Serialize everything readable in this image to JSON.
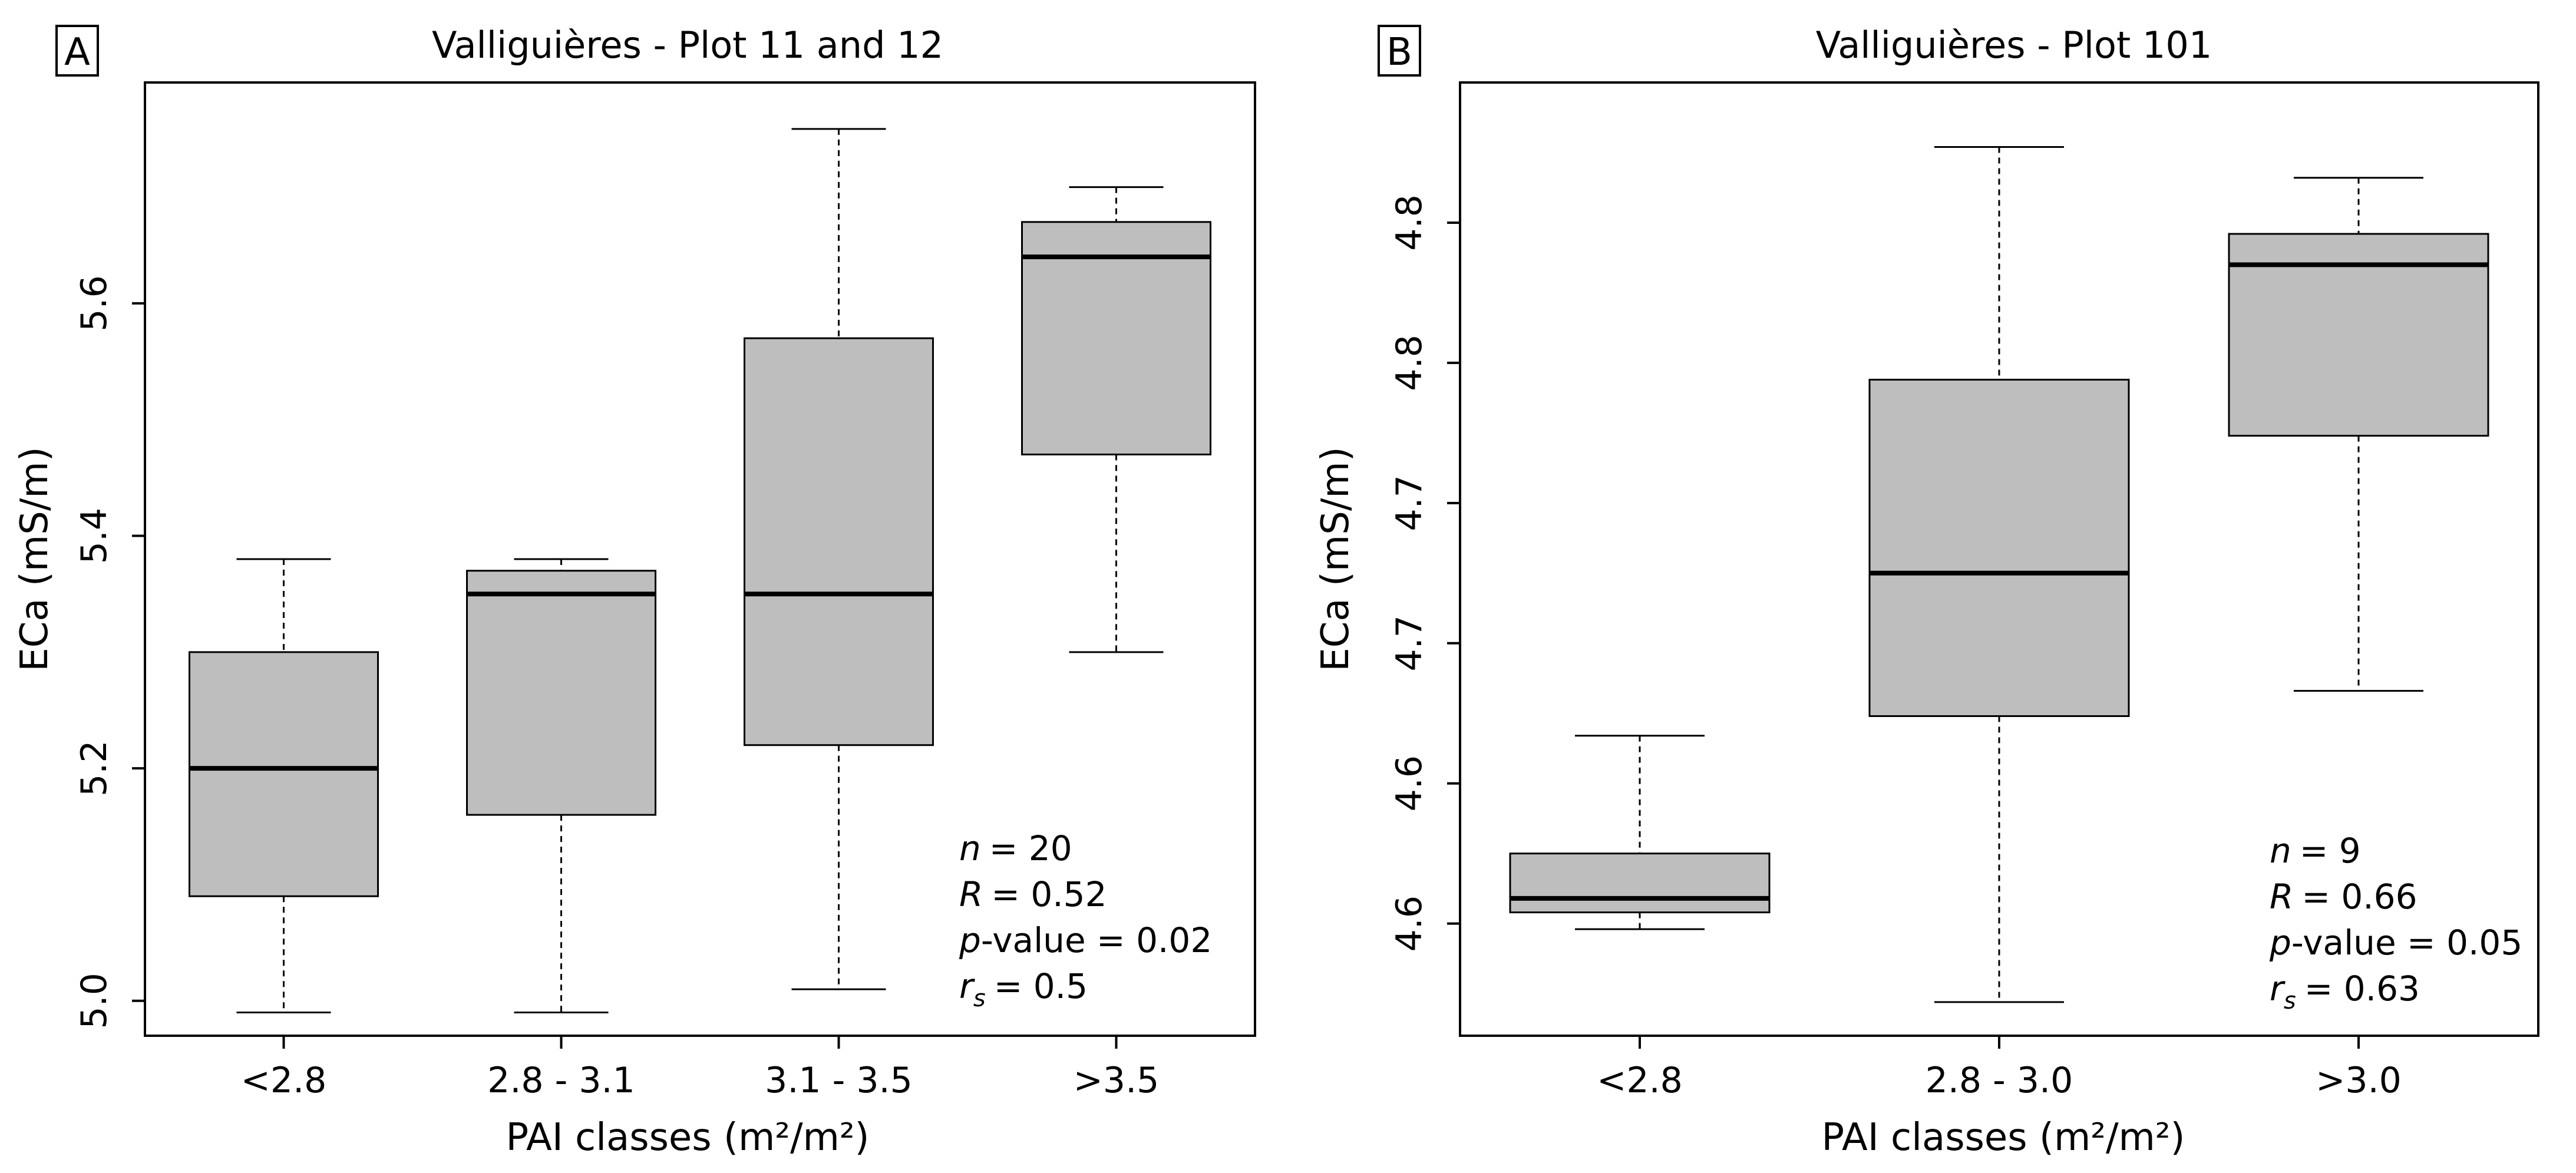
{
  "chart_data": [
    {
      "type": "boxplot",
      "panel": "A",
      "title": "Valliguières - Plot 11 and 12",
      "xlabel": "PAI classes (m²/m²)",
      "ylabel": "ECa (mS/m)",
      "ylim": [
        4.97,
        5.79
      ],
      "yticks": [
        5.0,
        5.2,
        5.4,
        5.6
      ],
      "ytick_labels": [
        "5.0",
        "5.2",
        "5.4",
        "5.6"
      ],
      "categories": [
        "<2.8",
        "2.8 - 3.1",
        "3.1 - 3.5",
        ">3.5"
      ],
      "boxes": [
        {
          "whisker_low": 4.99,
          "q1": 5.09,
          "median": 5.2,
          "q3": 5.3,
          "whisker_high": 5.38
        },
        {
          "whisker_low": 4.99,
          "q1": 5.16,
          "median": 5.35,
          "q3": 5.37,
          "whisker_high": 5.38
        },
        {
          "whisker_low": 5.01,
          "q1": 5.22,
          "median": 5.35,
          "q3": 5.57,
          "whisker_high": 5.75
        },
        {
          "whisker_low": 5.3,
          "q1": 5.47,
          "median": 5.64,
          "q3": 5.67,
          "whisker_high": 5.7
        }
      ],
      "stats": {
        "n_label": "n",
        "n_value": "= 20",
        "r_label": "R",
        "r_value": "= 0.52",
        "p_label": "p",
        "p_value": "-value = 0.02",
        "rs_label": "r",
        "rs_sub": "s",
        "rs_value": "= 0.5"
      }
    },
    {
      "type": "boxplot",
      "panel": "B",
      "title": "Valliguières - Plot 101",
      "xlabel": "PAI classes (m²/m²)",
      "ylabel": "ECa (mS/m)",
      "ylim": [
        4.52,
        4.86
      ],
      "yticks": [
        4.56,
        4.61,
        4.66,
        4.71,
        4.76,
        4.81
      ],
      "ytick_labels": [
        "4.6",
        "4.6",
        "4.7",
        "4.7",
        "4.8",
        "4.8"
      ],
      "categories": [
        "<2.8",
        "2.8 - 3.0",
        ">3.0"
      ],
      "boxes": [
        {
          "whisker_low": 4.558,
          "q1": 4.564,
          "median": 4.569,
          "q3": 4.585,
          "whisker_high": 4.627
        },
        {
          "whisker_low": 4.532,
          "q1": 4.634,
          "median": 4.685,
          "q3": 4.754,
          "whisker_high": 4.837
        },
        {
          "whisker_low": 4.643,
          "q1": 4.734,
          "median": 4.795,
          "q3": 4.806,
          "whisker_high": 4.826
        }
      ],
      "stats": {
        "n_label": "n",
        "n_value": "= 9",
        "r_label": "R",
        "r_value": "= 0.66",
        "p_label": "p",
        "p_value": "-value = 0.05",
        "rs_label": "r",
        "rs_sub": "s",
        "rs_value": "= 0.63"
      }
    }
  ]
}
